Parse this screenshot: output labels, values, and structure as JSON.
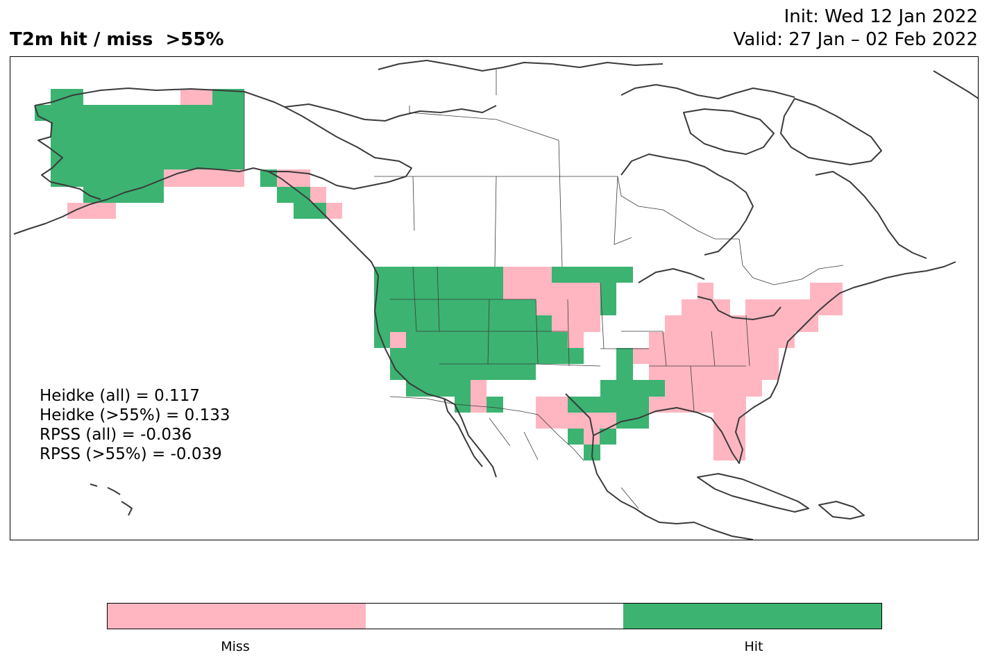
{
  "header": {
    "title": "T2m hit / miss  >55%",
    "init": "Init: Wed 12 Jan 2022",
    "valid": "Valid: 27 Jan – 02 Feb 2022"
  },
  "scores": [
    "Heidke (all) = 0.117",
    "Heidke (>55%) = 0.133",
    "RPSS (all) = -0.036",
    "RPSS (>55%) = -0.039"
  ],
  "legend": {
    "categories": [
      {
        "key": "miss",
        "label": "Miss",
        "color": "#ffb6c1"
      },
      {
        "key": "neutral",
        "label": "",
        "color": "#ffffff"
      },
      {
        "key": "hit",
        "label": "Hit",
        "color": "#3cb371"
      }
    ]
  },
  "colors": {
    "hit": "#3cb371",
    "miss": "#ffb6c1",
    "coastline": "#3a3a3a",
    "border": "#000000"
  }
}
